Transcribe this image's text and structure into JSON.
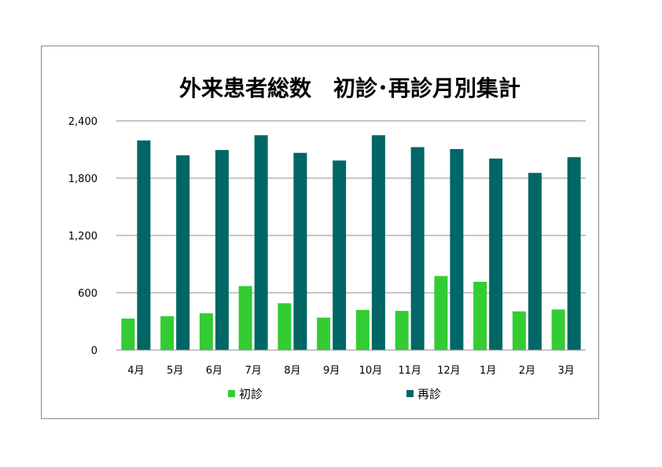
{
  "chart_data": {
    "type": "bar",
    "title": "外来患者総数　初診･再診月別集計",
    "xlabel": "",
    "ylabel": "",
    "categories": [
      "4月",
      "5月",
      "6月",
      "7月",
      "8月",
      "9月",
      "10月",
      "11月",
      "12月",
      "1月",
      "2月",
      "3月"
    ],
    "series": [
      {
        "name": "初診",
        "color": "#33cc33",
        "values": [
          330,
          355,
          385,
          670,
          490,
          340,
          420,
          410,
          775,
          715,
          405,
          425
        ]
      },
      {
        "name": "再診",
        "color": "#006666",
        "values": [
          2195,
          2040,
          2095,
          2250,
          2065,
          1985,
          2250,
          2125,
          2105,
          2005,
          1855,
          2020
        ]
      }
    ],
    "ylim": [
      0,
      2400
    ],
    "yticks": [
      0,
      600,
      1200,
      1800,
      2400
    ],
    "ytick_labels": [
      "0",
      "600",
      "1,200",
      "1,800",
      "2,400"
    ],
    "grid": true,
    "legend": "bottom"
  }
}
